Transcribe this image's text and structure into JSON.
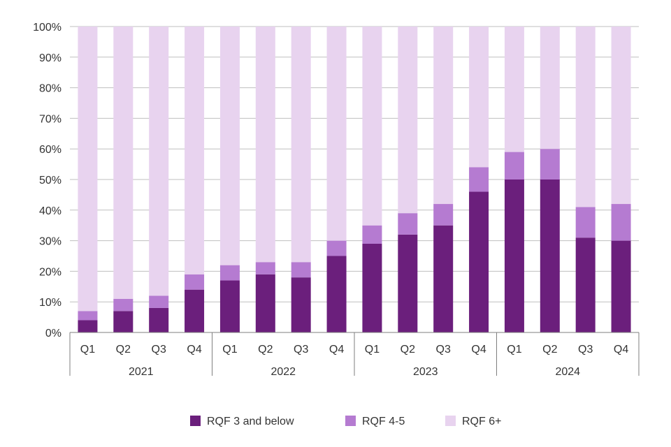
{
  "chart_data": {
    "type": "bar",
    "stacked": true,
    "percent_stacked": true,
    "categories": [
      "Q1",
      "Q2",
      "Q3",
      "Q4",
      "Q1",
      "Q2",
      "Q3",
      "Q4",
      "Q1",
      "Q2",
      "Q3",
      "Q4",
      "Q1",
      "Q2",
      "Q3",
      "Q4"
    ],
    "groups": [
      {
        "label": "2021",
        "count": 4
      },
      {
        "label": "2022",
        "count": 4
      },
      {
        "label": "2023",
        "count": 4
      },
      {
        "label": "2024",
        "count": 4
      }
    ],
    "series": [
      {
        "name": "RQF 3 and below",
        "color": "#6b1f7c",
        "values": [
          4,
          7,
          8,
          14,
          17,
          19,
          18,
          25,
          29,
          32,
          35,
          46,
          50,
          50,
          31,
          30
        ]
      },
      {
        "name": "RQF 4-5",
        "color": "#b57bd1",
        "values": [
          3,
          4,
          4,
          5,
          5,
          4,
          5,
          5,
          6,
          7,
          7,
          8,
          9,
          10,
          10,
          12
        ]
      },
      {
        "name": "RQF 6+",
        "color": "#e8d3ef",
        "values": [
          93,
          89,
          88,
          81,
          78,
          77,
          77,
          70,
          65,
          61,
          58,
          46,
          41,
          40,
          59,
          58
        ]
      }
    ],
    "yticks": [
      "0%",
      "10%",
      "20%",
      "30%",
      "40%",
      "50%",
      "60%",
      "70%",
      "80%",
      "90%",
      "100%"
    ],
    "ylim": [
      0,
      100
    ],
    "grid": true,
    "legend_position": "bottom-center"
  }
}
